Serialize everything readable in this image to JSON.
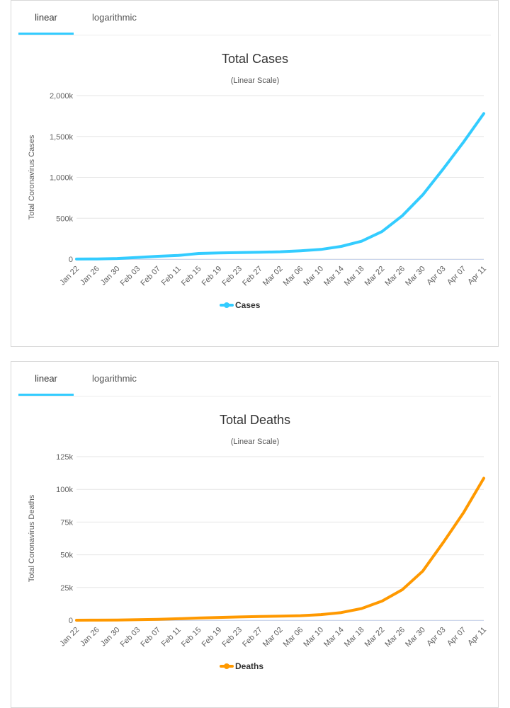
{
  "panels": [
    {
      "tabs": [
        {
          "label": "linear"
        },
        {
          "label": "logarithmic"
        }
      ],
      "active_tab": 0,
      "legend_label": "Cases"
    },
    {
      "tabs": [
        {
          "label": "linear"
        },
        {
          "label": "logarithmic"
        }
      ],
      "active_tab": 0,
      "legend_label": "Deaths"
    }
  ],
  "chart_data": [
    {
      "type": "line",
      "title": "Total Cases",
      "subtitle": "(Linear Scale)",
      "xlabel": "",
      "ylabel": "Total Coronavirus Cases",
      "x_tick_labels": [
        "Jan 22",
        "Jan 26",
        "Jan 30",
        "Feb 03",
        "Feb 07",
        "Feb 11",
        "Feb 15",
        "Feb 19",
        "Feb 23",
        "Feb 27",
        "Mar 02",
        "Mar 06",
        "Mar 10",
        "Mar 14",
        "Mar 18",
        "Mar 22",
        "Mar 26",
        "Mar 30",
        "Apr 03",
        "Apr 07",
        "Apr 11"
      ],
      "y_tick_labels": [
        "0",
        "500k",
        "1,000k",
        "1,500k",
        "2,000k"
      ],
      "ylim": [
        0,
        2000000
      ],
      "color": "#33ccff",
      "grid": true,
      "legend_position": "bottom-center",
      "series": [
        {
          "name": "Cases",
          "values": [
            580,
            2800,
            8200,
            20600,
            34400,
            45200,
            69200,
            75600,
            79500,
            83700,
            90300,
            102000,
            119000,
            156000,
            219000,
            337000,
            531000,
            786000,
            1100000,
            1430000,
            1780000
          ]
        }
      ]
    },
    {
      "type": "line",
      "title": "Total Deaths",
      "subtitle": "(Linear Scale)",
      "xlabel": "",
      "ylabel": "Total Coronavirus Deaths",
      "x_tick_labels": [
        "Jan 22",
        "Jan 26",
        "Jan 30",
        "Feb 03",
        "Feb 07",
        "Feb 11",
        "Feb 15",
        "Feb 19",
        "Feb 23",
        "Feb 27",
        "Mar 02",
        "Mar 06",
        "Mar 10",
        "Mar 14",
        "Mar 18",
        "Mar 22",
        "Mar 26",
        "Mar 30",
        "Apr 03",
        "Apr 07",
        "Apr 11"
      ],
      "y_tick_labels": [
        "0",
        "25k",
        "50k",
        "75k",
        "100k",
        "125k"
      ],
      "ylim": [
        0,
        125000
      ],
      "color": "#ff9900",
      "grid": true,
      "legend_position": "bottom-center",
      "series": [
        {
          "name": "Deaths",
          "values": [
            17,
            56,
            170,
            426,
            720,
            1110,
            1670,
            2120,
            2470,
            2800,
            3100,
            3460,
            4260,
            5820,
            8950,
            14600,
            23300,
            37500,
            59200,
            82100,
            108500
          ]
        }
      ]
    }
  ]
}
